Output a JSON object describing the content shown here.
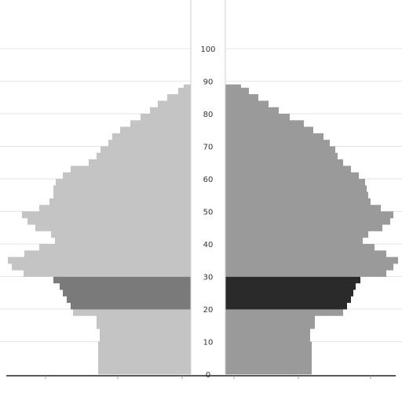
{
  "chart_data": {
    "type": "bar",
    "orientation": "horizontal",
    "subtype": "population-pyramid",
    "title": "",
    "xlabel": "",
    "ylabel": "",
    "ylim": [
      0,
      100
    ],
    "y_ticks": [
      "0",
      "10",
      "20",
      "30",
      "40",
      "50",
      "60",
      "70",
      "80",
      "90",
      "100"
    ],
    "x_tick_labels_left": [
      "",
      "",
      ""
    ],
    "x_tick_labels_right": [
      "",
      "",
      ""
    ],
    "grid": true,
    "highlight_band": {
      "from_age": 20,
      "to_age": 30
    },
    "colors": {
      "left": "#c4c4c4",
      "left_highlight": "#7a7a7a",
      "right": "#9a9a9a",
      "right_highlight": "#2a2a2a",
      "grid": "#e6e6e6",
      "axis": "#222222"
    },
    "series": [
      {
        "side": "left",
        "age_upper": [
          2,
          6,
          10,
          14,
          18,
          20,
          22,
          24,
          26,
          28,
          30,
          32,
          34,
          36,
          38,
          40,
          42,
          44,
          46,
          48,
          50,
          52,
          54,
          56,
          58,
          60,
          62,
          64,
          66,
          68,
          70,
          72,
          74,
          76,
          78,
          80,
          82,
          84,
          86,
          88,
          89
        ],
        "values": [
          118,
          118,
          118,
          116,
          120,
          150,
          153,
          158,
          163,
          167,
          175,
          213,
          228,
          233,
          212,
          193,
          173,
          178,
          198,
          208,
          215,
          193,
          180,
          175,
          175,
          172,
          163,
          153,
          130,
          120,
          115,
          105,
          100,
          90,
          77,
          64,
          52,
          42,
          30,
          16,
          9
        ]
      },
      {
        "side": "right",
        "age_upper": [
          2,
          6,
          10,
          14,
          18,
          20,
          22,
          24,
          26,
          28,
          30,
          32,
          34,
          36,
          38,
          40,
          42,
          44,
          46,
          48,
          50,
          52,
          54,
          56,
          58,
          60,
          62,
          64,
          66,
          68,
          70,
          72,
          74,
          76,
          78,
          80,
          82,
          84,
          86,
          88,
          89
        ],
        "values": [
          110,
          110,
          110,
          108,
          114,
          150,
          155,
          160,
          163,
          166,
          172,
          205,
          214,
          220,
          205,
          190,
          175,
          182,
          200,
          210,
          214,
          198,
          185,
          182,
          180,
          178,
          170,
          160,
          150,
          143,
          140,
          133,
          125,
          112,
          100,
          82,
          68,
          55,
          42,
          30,
          20
        ]
      }
    ]
  }
}
